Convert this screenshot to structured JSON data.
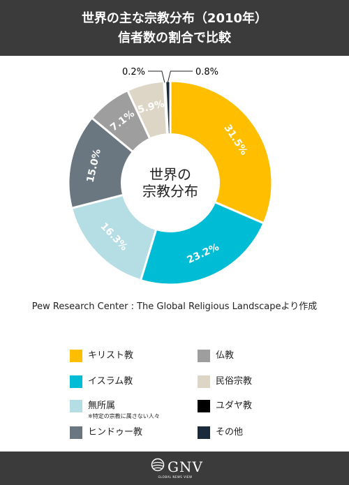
{
  "header": {
    "title_line1": "世界の主な宗教分布（2010年）",
    "title_line2": "信者数の割合で比較"
  },
  "chart_data": {
    "type": "pie",
    "title": "世界の主な宗教分布（2010年）信者数の割合で比較",
    "center_label": [
      "世界の",
      "宗教分布"
    ],
    "slices": [
      {
        "name": "キリスト教",
        "value": 31.5,
        "label": "31.5%",
        "color": "#ffbf00",
        "label_color": "#ffffff"
      },
      {
        "name": "イスラム教",
        "value": 23.2,
        "label": "23.2%",
        "color": "#00bcd4",
        "label_color": "#ffffff"
      },
      {
        "name": "無所属",
        "value": 16.3,
        "label": "16.3%",
        "color": "#b5dde4",
        "label_color": "#ffffff"
      },
      {
        "name": "ヒンドゥー教",
        "value": 15.0,
        "label": "15.0%",
        "color": "#6b7780",
        "label_color": "#ffffff"
      },
      {
        "name": "仏教",
        "value": 7.1,
        "label": "7.1%",
        "color": "#9e9e9e",
        "label_color": "#ffffff"
      },
      {
        "name": "民俗宗教",
        "value": 5.9,
        "label": "5.9%",
        "color": "#ddd6c6",
        "label_color": "#ffffff"
      },
      {
        "name": "ユダヤ教",
        "value": 0.2,
        "label": "0.2%",
        "color": "#000000",
        "label_color": "#000000"
      },
      {
        "name": "その他",
        "value": 0.8,
        "label": "0.8%",
        "color": "#1b2a3a",
        "label_color": "#000000"
      }
    ]
  },
  "source": "Pew Research Center : The Global Religious Landscapeより作成",
  "legend": {
    "items": [
      {
        "label": "キリスト教",
        "color": "#ffbf00"
      },
      {
        "label": "仏教",
        "color": "#9e9e9e"
      },
      {
        "label": "イスラム教",
        "color": "#00bcd4"
      },
      {
        "label": "民俗宗教",
        "color": "#ddd6c6"
      },
      {
        "label": "無所属",
        "color": "#b5dde4",
        "note": "※特定の宗教に属さない人々"
      },
      {
        "label": "ユダヤ教",
        "color": "#000000"
      },
      {
        "label": "ヒンドゥー教",
        "color": "#6b7780"
      },
      {
        "label": "その他",
        "color": "#1b2a3a"
      }
    ]
  },
  "footer": {
    "brand": "GNV",
    "tagline": "GLOBAL NEWS VIEW"
  }
}
